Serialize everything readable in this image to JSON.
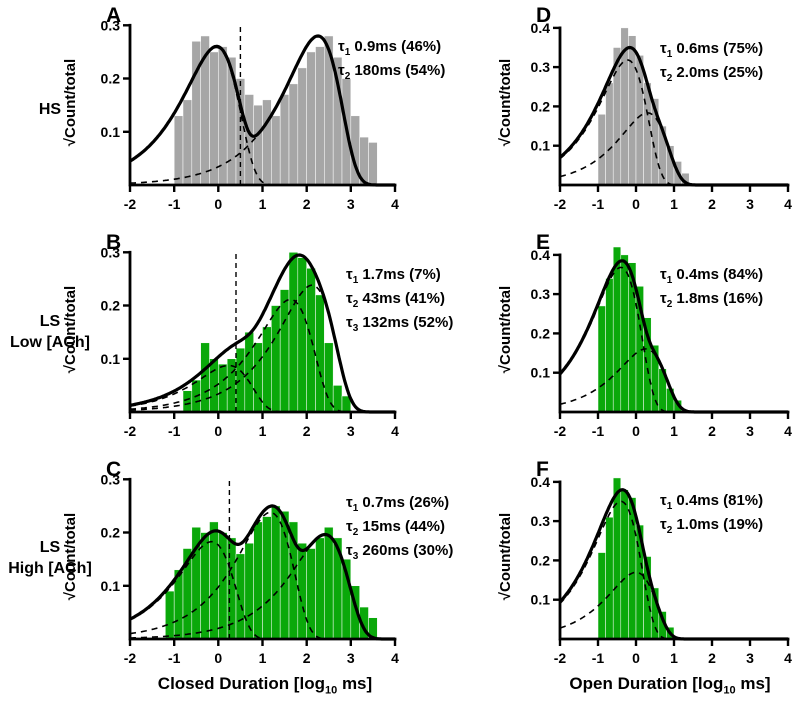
{
  "tau_symbol": "τ",
  "rows": [
    {
      "line1": "HS",
      "line2": ""
    },
    {
      "line1": "LS",
      "line2": "Low [ACh]"
    },
    {
      "line1": "LS",
      "line2": "High [ACh]"
    }
  ],
  "axis_titles": {
    "closed": {
      "pre": "Closed Duration [log",
      "sub": "10",
      "post": " ms]"
    },
    "open": {
      "pre": "Open Duration [log",
      "sub": "10",
      "post": " ms]"
    }
  },
  "colors": {
    "hs_fill": "#a6a6a6",
    "ls_fill": "#0aa80a",
    "curve": "#000000"
  },
  "chart_data": [
    {
      "id": "A",
      "type": "bar",
      "panel_letter": "A",
      "row_label": "HS",
      "x_axis": "Closed Duration [log10 ms]",
      "y_axis": "√Count/total",
      "xlim": [
        -2,
        4
      ],
      "xticks": [
        -2,
        -1,
        0,
        1,
        2,
        3,
        4
      ],
      "ylim": [
        0,
        0.31
      ],
      "yticks": [
        0.1,
        0.2,
        0.3
      ],
      "bar_color": "#a6a6a6",
      "bin_start": -1.0,
      "bin_width": 0.2,
      "bar_heights": [
        0.13,
        0.16,
        0.27,
        0.28,
        0.25,
        0.26,
        0.24,
        0.2,
        0.17,
        0.15,
        0.16,
        0.13,
        0.17,
        0.19,
        0.22,
        0.25,
        0.26,
        0.28,
        0.24,
        0.2,
        0.13,
        0.09,
        0.08
      ],
      "fit": {
        "taus_ms": [
          0.9,
          180
        ],
        "fractions": [
          0.46,
          0.54
        ],
        "curve_peak": 0.28
      },
      "vline_x": 0.5,
      "annotation_lines": [
        {
          "tau_subscript": "1",
          "text": " 0.9ms (46%)"
        },
        {
          "tau_subscript": "2",
          "text": " 180ms (54%)"
        }
      ]
    },
    {
      "id": "B",
      "type": "bar",
      "panel_letter": "B",
      "row_label": "LS Low [ACh]",
      "x_axis": "Closed Duration [log10 ms]",
      "y_axis": "√Count/total",
      "xlim": [
        -2,
        4
      ],
      "xticks": [
        -2,
        -1,
        0,
        1,
        2,
        3,
        4
      ],
      "ylim": [
        0,
        0.31
      ],
      "yticks": [
        0.1,
        0.2,
        0.3
      ],
      "bar_color": "#0aa80a",
      "bin_start": -0.8,
      "bin_width": 0.2,
      "bar_heights": [
        0.04,
        0.06,
        0.13,
        0.1,
        0.09,
        0.1,
        0.12,
        0.15,
        0.13,
        0.16,
        0.2,
        0.23,
        0.3,
        0.29,
        0.27,
        0.22,
        0.13,
        0.05,
        0.03
      ],
      "fit": {
        "taus_ms": [
          1.7,
          43,
          132
        ],
        "fractions": [
          0.07,
          0.41,
          0.52
        ],
        "curve_peak": 0.295
      },
      "vline_x": 0.4,
      "annotation_lines": [
        {
          "tau_subscript": "1",
          "text": " 1.7ms (7%)"
        },
        {
          "tau_subscript": "2",
          "text": " 43ms (41%)"
        },
        {
          "tau_subscript": "3",
          "text": " 132ms (52%)"
        }
      ]
    },
    {
      "id": "C",
      "type": "bar",
      "panel_letter": "C",
      "row_label": "LS High [ACh]",
      "x_axis": "Closed Duration [log10 ms]",
      "y_axis": "√Count/total",
      "xlim": [
        -2,
        4
      ],
      "xticks": [
        -2,
        -1,
        0,
        1,
        2,
        3,
        4
      ],
      "ylim": [
        0,
        0.31
      ],
      "yticks": [
        0.1,
        0.2,
        0.3
      ],
      "bar_color": "#0aa80a",
      "bin_start": -1.2,
      "bin_width": 0.2,
      "bar_heights": [
        0.09,
        0.13,
        0.17,
        0.21,
        0.2,
        0.22,
        0.2,
        0.19,
        0.16,
        0.18,
        0.22,
        0.23,
        0.25,
        0.24,
        0.22,
        0.18,
        0.17,
        0.19,
        0.21,
        0.19,
        0.15,
        0.1,
        0.06,
        0.04
      ],
      "fit": {
        "taus_ms": [
          0.7,
          15,
          260
        ],
        "fractions": [
          0.26,
          0.44,
          0.3
        ],
        "curve_peak": 0.25
      },
      "vline_x": 0.25,
      "annotation_lines": [
        {
          "tau_subscript": "1",
          "text": " 0.7ms (26%)"
        },
        {
          "tau_subscript": "2",
          "text": " 15ms (44%)"
        },
        {
          "tau_subscript": "3",
          "text": " 260ms (30%)"
        }
      ]
    },
    {
      "id": "D",
      "type": "bar",
      "panel_letter": "D",
      "row_label": "HS",
      "x_axis": "Open Duration [log10 ms]",
      "y_axis": "√Count/total",
      "xlim": [
        -2,
        4
      ],
      "xticks": [
        -2,
        -1,
        0,
        1,
        2,
        3,
        4
      ],
      "ylim": [
        0,
        0.42
      ],
      "yticks": [
        0.1,
        0.2,
        0.3,
        0.4
      ],
      "bar_color": "#a6a6a6",
      "bin_start": -1.0,
      "bin_width": 0.2,
      "bar_heights": [
        0.18,
        0.26,
        0.35,
        0.4,
        0.38,
        0.33,
        0.26,
        0.22,
        0.15,
        0.1,
        0.06,
        0.03
      ],
      "fit": {
        "taus_ms": [
          0.6,
          2.0
        ],
        "fractions": [
          0.75,
          0.25
        ],
        "curve_peak": 0.35
      },
      "vline_x": null,
      "annotation_lines": [
        {
          "tau_subscript": "1",
          "text": " 0.6ms (75%)"
        },
        {
          "tau_subscript": "2",
          "text": " 2.0ms (25%)"
        }
      ]
    },
    {
      "id": "E",
      "type": "bar",
      "panel_letter": "E",
      "row_label": "LS Low [ACh]",
      "x_axis": "Open Duration [log10 ms]",
      "y_axis": "√Count/total",
      "xlim": [
        -2,
        4
      ],
      "xticks": [
        -2,
        -1,
        0,
        1,
        2,
        3,
        4
      ],
      "ylim": [
        0,
        0.42
      ],
      "yticks": [
        0.1,
        0.2,
        0.3,
        0.4
      ],
      "bar_color": "#0aa80a",
      "bin_start": -1.0,
      "bin_width": 0.2,
      "bar_heights": [
        0.27,
        0.34,
        0.42,
        0.4,
        0.38,
        0.32,
        0.24,
        0.17,
        0.11,
        0.06,
        0.03
      ],
      "fit": {
        "taus_ms": [
          0.4,
          1.8
        ],
        "fractions": [
          0.84,
          0.16
        ],
        "curve_peak": 0.385
      },
      "vline_x": null,
      "annotation_lines": [
        {
          "tau_subscript": "1",
          "text": " 0.4ms (84%)"
        },
        {
          "tau_subscript": "2",
          "text": " 1.8ms (16%)"
        }
      ]
    },
    {
      "id": "F",
      "type": "bar",
      "panel_letter": "F",
      "row_label": "LS High [ACh]",
      "x_axis": "Open Duration [log10 ms]",
      "y_axis": "√Count/total",
      "xlim": [
        -2,
        4
      ],
      "xticks": [
        -2,
        -1,
        0,
        1,
        2,
        3,
        4
      ],
      "ylim": [
        0,
        0.42
      ],
      "yticks": [
        0.1,
        0.2,
        0.3,
        0.4
      ],
      "bar_color": "#0aa80a",
      "bin_start": -1.0,
      "bin_width": 0.2,
      "bar_heights": [
        0.22,
        0.31,
        0.41,
        0.38,
        0.36,
        0.29,
        0.21,
        0.13,
        0.07,
        0.03
      ],
      "fit": {
        "taus_ms": [
          0.4,
          1.0
        ],
        "fractions": [
          0.81,
          0.19
        ],
        "curve_peak": 0.38
      },
      "vline_x": null,
      "annotation_lines": [
        {
          "tau_subscript": "1",
          "text": " 0.4ms (81%)"
        },
        {
          "tau_subscript": "2",
          "text": " 1.0ms (19%)"
        }
      ]
    }
  ]
}
